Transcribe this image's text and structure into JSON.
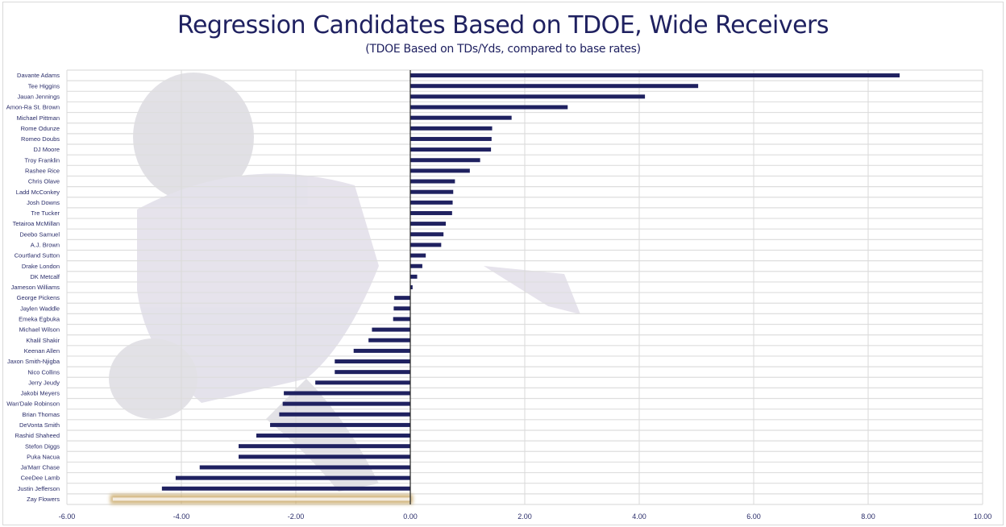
{
  "chart_data": {
    "type": "bar",
    "orientation": "horizontal",
    "title": "Regression Candidates Based on TDOE, Wide Receivers",
    "subtitle": "(TDOE Based on TDs/Yds, compared to base rates)",
    "xlabel": "",
    "ylabel": "",
    "xlim": [
      -6,
      10
    ],
    "xticks": [
      -6,
      -4,
      -2,
      0,
      2,
      4,
      6,
      8,
      10
    ],
    "xtick_labels": [
      "-6.00",
      "-4.00",
      "-2.00",
      "0.00",
      "2.00",
      "4.00",
      "6.00",
      "8.00",
      "10.00"
    ],
    "grid": true,
    "bar_color": "#1f2160",
    "highlight_color": "#c9a968",
    "highlight_category": "Zay Flowers",
    "background_image": "Ravens player silhouette (faded)",
    "categories": [
      "Davante Adams",
      "Tee Higgins",
      "Jauan Jennings",
      "Amon-Ra St. Brown",
      "Michael Pittman",
      "Rome Odunze",
      "Romeo Doubs",
      "DJ Moore",
      "Troy Franklin",
      "Rashee Rice",
      "Chris Olave",
      "Ladd McConkey",
      "Josh Downs",
      "Tre Tucker",
      "Tetairoa McMillan",
      "Deebo Samuel",
      "A.J. Brown",
      "Courtland Sutton",
      "Drake London",
      "DK Metcalf",
      "Jameson Williams",
      "George Pickens",
      "Jaylen Waddle",
      "Emeka Egbuka",
      "Michael Wilson",
      "Khalil Shakir",
      "Keenan Allen",
      "Jaxon Smith-Njigba",
      "Nico Collins",
      "Jerry Jeudy",
      "Jakobi Meyers",
      "Wan'Dale Robinson",
      "Brian Thomas",
      "DeVonta Smith",
      "Rashid Shaheed",
      "Stefon Diggs",
      "Puka Nacua",
      "Ja'Marr Chase",
      "CeeDee Lamb",
      "Justin Jefferson",
      "Zay Flowers"
    ],
    "values": [
      8.55,
      5.03,
      4.1,
      2.75,
      1.77,
      1.43,
      1.42,
      1.41,
      1.22,
      1.04,
      0.78,
      0.75,
      0.74,
      0.73,
      0.62,
      0.58,
      0.54,
      0.27,
      0.21,
      0.12,
      0.04,
      -0.28,
      -0.29,
      -0.3,
      -0.67,
      -0.73,
      -0.99,
      -1.32,
      -1.32,
      -1.66,
      -2.21,
      -2.23,
      -2.29,
      -2.45,
      -2.69,
      -3.0,
      -3.0,
      -3.68,
      -4.1,
      -4.34,
      -5.2
    ]
  }
}
